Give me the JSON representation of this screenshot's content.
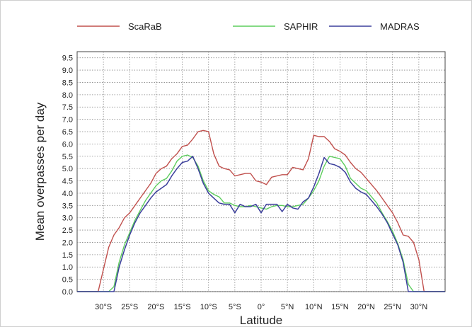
{
  "chart_data": {
    "type": "line",
    "xlabel": "Latitude",
    "ylabel": "Mean overpasses per day",
    "xlim": [
      -35,
      35
    ],
    "ylim": [
      0,
      9.5
    ],
    "y_ticks": [
      0.0,
      0.5,
      1.0,
      1.5,
      2.0,
      2.5,
      3.0,
      3.5,
      4.0,
      4.5,
      5.0,
      5.5,
      6.0,
      6.5,
      7.0,
      7.5,
      8.0,
      8.5,
      9.0,
      9.5
    ],
    "y_tick_labels": [
      "0.0",
      "0.5",
      "1.0",
      "1.5",
      "2.0",
      "2.5",
      "3.0",
      "3.5",
      "4.0",
      "4.5",
      "5.0",
      "5.5",
      "6.0",
      "6.5",
      "7.0",
      "7.5",
      "8.0",
      "8.5",
      "9.0",
      "9.5"
    ],
    "x_ticks": [
      -30,
      -25,
      -20,
      -15,
      -10,
      -5,
      0,
      5,
      10,
      15,
      20,
      25,
      30
    ],
    "x_tick_labels": [
      "30°S",
      "25°S",
      "20°S",
      "15°S",
      "10°S",
      "5°S",
      "0°",
      "5°N",
      "10°N",
      "15°N",
      "20°N",
      "25°N",
      "30°N"
    ],
    "grid": true,
    "legend_position": "top",
    "series": [
      {
        "name": "ScaRaB",
        "color": "#c0504d",
        "x": [
          -35,
          -33,
          -31,
          -30,
          -29,
          -28,
          -27,
          -26,
          -25,
          -24,
          -23,
          -22,
          -21,
          -20,
          -19,
          -18,
          -17,
          -16,
          -15,
          -14,
          -13,
          -12,
          -11,
          -10,
          -9,
          -8,
          -7,
          -6,
          -5,
          -4,
          -3,
          -2,
          -1,
          0,
          1,
          2,
          3,
          4,
          5,
          6,
          7,
          8,
          9,
          10,
          11,
          12,
          13,
          14,
          15,
          16,
          17,
          18,
          19,
          20,
          21,
          22,
          23,
          24,
          25,
          26,
          27,
          28,
          29,
          30,
          31,
          33,
          35
        ],
        "y": [
          0,
          0,
          0,
          0.9,
          1.8,
          2.3,
          2.6,
          3.0,
          3.2,
          3.5,
          3.8,
          4.1,
          4.4,
          4.8,
          5.0,
          5.1,
          5.4,
          5.6,
          5.9,
          5.95,
          6.2,
          6.5,
          6.55,
          6.5,
          5.6,
          5.1,
          5.0,
          4.95,
          4.7,
          4.75,
          4.8,
          4.8,
          4.5,
          4.45,
          4.35,
          4.65,
          4.7,
          4.75,
          4.75,
          5.05,
          5.0,
          4.95,
          5.4,
          6.35,
          6.3,
          6.3,
          6.1,
          5.8,
          5.7,
          5.55,
          5.25,
          5.0,
          4.85,
          4.6,
          4.35,
          4.1,
          3.8,
          3.5,
          3.2,
          2.8,
          2.3,
          2.25,
          2.0,
          1.3,
          0,
          0,
          0
        ]
      },
      {
        "name": "SAPHIR",
        "color": "#5ccd5c",
        "x": [
          -35,
          -31,
          -29,
          -28,
          -27,
          -26,
          -25,
          -24,
          -23,
          -22,
          -21,
          -20,
          -19,
          -18,
          -17,
          -16,
          -15,
          -14,
          -13,
          -12,
          -11,
          -10,
          -9,
          -8,
          -7,
          -6,
          -5,
          -4,
          -3,
          -2,
          -1,
          0,
          1,
          2,
          3,
          4,
          5,
          6,
          7,
          8,
          9,
          10,
          11,
          12,
          13,
          14,
          15,
          16,
          17,
          18,
          19,
          20,
          21,
          22,
          23,
          24,
          25,
          26,
          27,
          28,
          29,
          31,
          35
        ],
        "y": [
          0,
          0,
          0,
          0.2,
          1.2,
          1.9,
          2.4,
          2.9,
          3.3,
          3.7,
          4.0,
          4.3,
          4.5,
          4.6,
          4.9,
          5.3,
          5.5,
          5.55,
          5.45,
          5.1,
          4.5,
          4.1,
          3.95,
          3.85,
          3.6,
          3.6,
          3.5,
          3.45,
          3.45,
          3.5,
          3.45,
          3.4,
          3.35,
          3.45,
          3.5,
          3.5,
          3.45,
          3.45,
          3.5,
          3.55,
          3.8,
          4.1,
          4.5,
          5.1,
          5.5,
          5.45,
          5.4,
          5.1,
          4.6,
          4.4,
          4.2,
          4.1,
          3.85,
          3.6,
          3.2,
          2.85,
          2.45,
          1.95,
          1.3,
          0.3,
          0,
          0,
          0
        ]
      },
      {
        "name": "MADRAS",
        "color": "#3c3f9c",
        "x": [
          -35,
          -28,
          -27,
          -26,
          -25,
          -24,
          -23,
          -22,
          -21,
          -20,
          -19,
          -18,
          -17,
          -16,
          -15,
          -14,
          -13,
          -12,
          -11,
          -10,
          -9,
          -8,
          -7,
          -6,
          -5,
          -4,
          -3,
          -2,
          -1,
          0,
          1,
          2,
          3,
          4,
          5,
          6,
          7,
          8,
          9,
          10,
          11,
          12,
          13,
          14,
          15,
          16,
          17,
          18,
          19,
          20,
          21,
          22,
          23,
          24,
          25,
          26,
          27,
          28,
          29,
          31,
          35
        ],
        "y": [
          0,
          0,
          1.0,
          1.7,
          2.3,
          2.8,
          3.2,
          3.5,
          3.8,
          4.05,
          4.2,
          4.35,
          4.7,
          5.0,
          5.25,
          5.3,
          5.5,
          5.0,
          4.4,
          4.0,
          3.8,
          3.6,
          3.55,
          3.55,
          3.2,
          3.55,
          3.45,
          3.45,
          3.55,
          3.2,
          3.55,
          3.55,
          3.55,
          3.25,
          3.55,
          3.4,
          3.35,
          3.65,
          3.8,
          4.25,
          4.8,
          5.45,
          5.2,
          5.15,
          5.05,
          4.85,
          4.45,
          4.2,
          4.05,
          3.95,
          3.7,
          3.45,
          3.15,
          2.8,
          2.35,
          1.9,
          1.2,
          0,
          0,
          0,
          0
        ]
      }
    ]
  }
}
